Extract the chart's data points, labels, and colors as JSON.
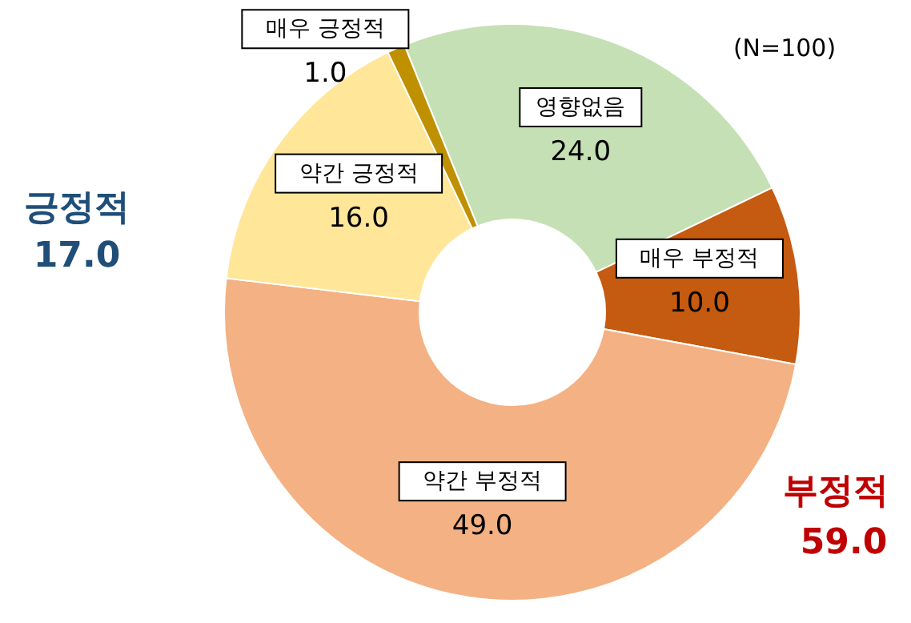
{
  "chart_data": {
    "type": "donut",
    "categories": [
      "영향없음",
      "매우 부정적",
      "약간 부정적",
      "약간 긍정적",
      "매우 긍정적"
    ],
    "values": [
      24.0,
      10.0,
      49.0,
      16.0,
      1.0
    ],
    "colors": [
      "#c5e0b4",
      "#c55a11",
      "#f4b183",
      "#ffe699",
      "#bf9000"
    ],
    "value_labels": [
      "24.0",
      "10.0",
      "49.0",
      "16.0",
      "1.0"
    ],
    "annotations": [
      "(N=100)",
      "긍정적",
      "17.0",
      "부정적",
      "59.0"
    ]
  }
}
